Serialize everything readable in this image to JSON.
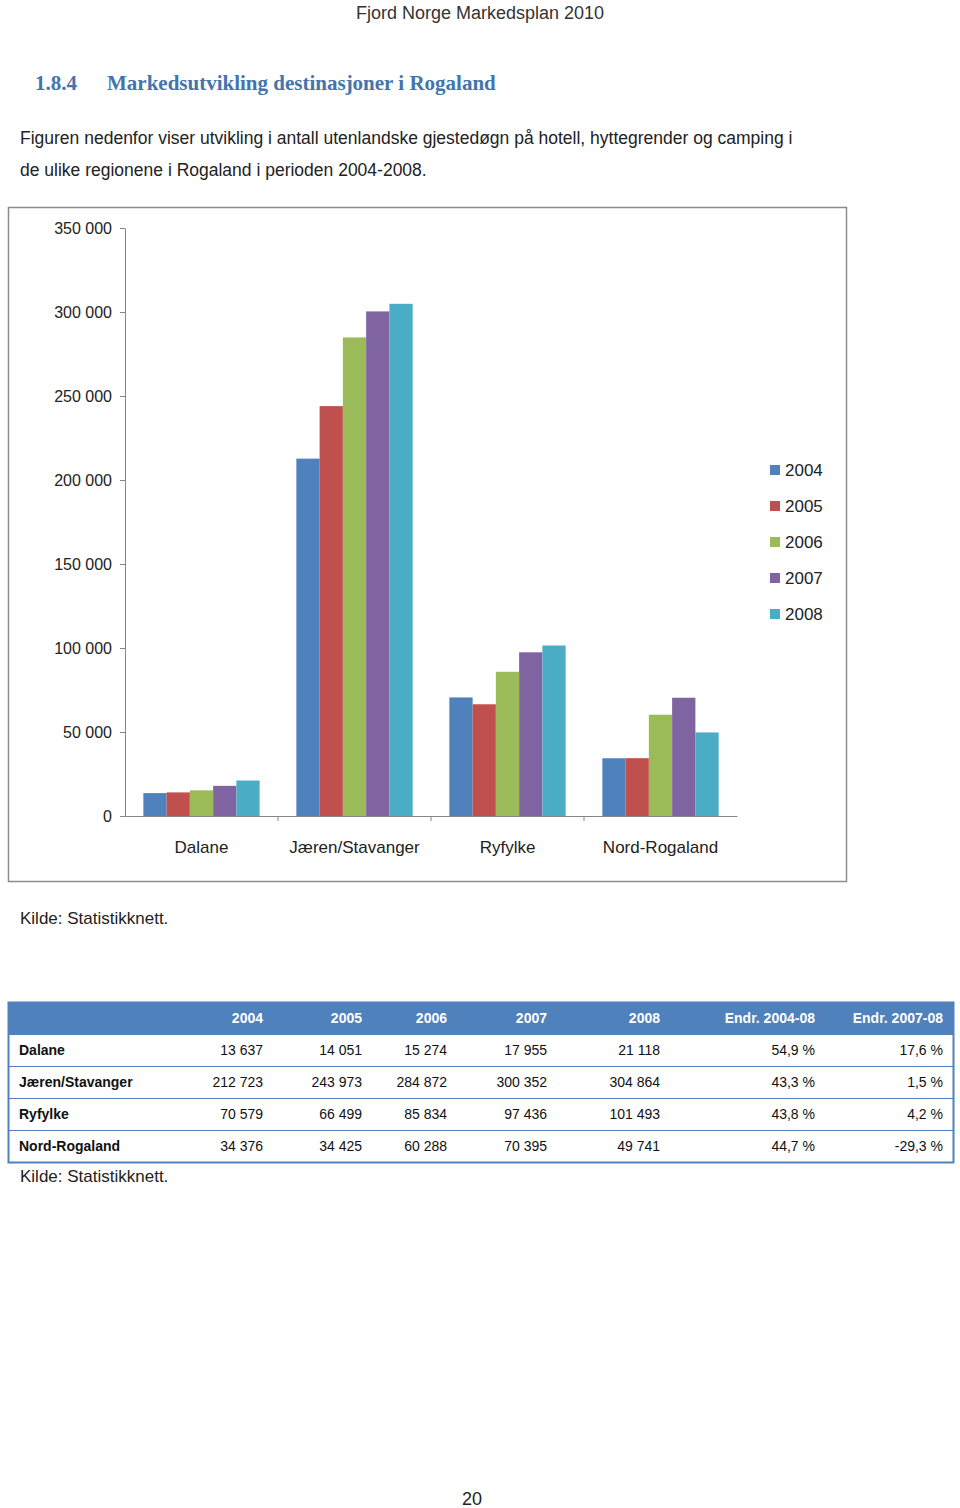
{
  "header": {
    "title": "Fjord Norge Markedsplan 2010"
  },
  "section": {
    "number": "1.8.4",
    "title": "Markedsutvikling destinasjoner i Rogaland"
  },
  "paragraph": [
    "Figuren nedenfor viser utvikling i antall utenlandske gjestedøgn på hotell, hyttegrender og camping i",
    "de ulike regionene i Rogaland i perioden 2004-2008."
  ],
  "chart_data": {
    "type": "bar",
    "categories": [
      "Dalane",
      "Jæren/Stavanger",
      "Ryfylke",
      "Nord-Rogaland"
    ],
    "series": [
      {
        "name": "2004",
        "color": "#4f81bd",
        "values": [
          13637,
          212723,
          70579,
          34376
        ]
      },
      {
        "name": "2005",
        "color": "#c0504d",
        "values": [
          14051,
          243973,
          66499,
          34425
        ]
      },
      {
        "name": "2006",
        "color": "#9bbb59",
        "values": [
          15274,
          284872,
          85834,
          60288
        ]
      },
      {
        "name": "2007",
        "color": "#8064a2",
        "values": [
          17955,
          300352,
          97436,
          70395
        ]
      },
      {
        "name": "2008",
        "color": "#4bacc6",
        "values": [
          21118,
          304864,
          101493,
          49741
        ]
      }
    ],
    "ylim": [
      0,
      350000
    ],
    "yticks": [
      0,
      {
        "value": 50000,
        "label": "50 000"
      },
      {
        "value": 100000,
        "label": "100 000"
      },
      {
        "value": 150000,
        "label": "150 000"
      },
      {
        "value": 200000,
        "label": "200 000"
      },
      {
        "value": 250000,
        "label": "250 000"
      },
      {
        "value": 300000,
        "label": "300 000"
      },
      {
        "value": 350000,
        "label": "350 000"
      }
    ],
    "grid": false,
    "legend": "right"
  },
  "chart_source": "Kilde: Statistikknett.",
  "table": {
    "columns": [
      "2004",
      "2005",
      "2006",
      "2007",
      "2008",
      "Endr. 2004-08",
      "Endr. 2007-08"
    ],
    "rows": [
      {
        "label": "Dalane",
        "cells": [
          "13 637",
          "14 051",
          "15 274",
          "17 955",
          "21 118",
          "54,9 %",
          "17,6 %"
        ]
      },
      {
        "label": "Jæren/Stavanger",
        "cells": [
          "212 723",
          "243 973",
          "284 872",
          "300 352",
          "304 864",
          "43,3 %",
          "1,5 %"
        ]
      },
      {
        "label": "Ryfylke",
        "cells": [
          "70 579",
          "66 499",
          "85 834",
          "97 436",
          "101 493",
          "43,8 %",
          "4,2 %"
        ]
      },
      {
        "label": "Nord-Rogaland",
        "cells": [
          "34 376",
          "34 425",
          "60 288",
          "70 395",
          "49 741",
          "44,7 %",
          "-29,3 %"
        ]
      }
    ]
  },
  "table_source": "Kilde: Statistikknett.",
  "page_number": "20"
}
